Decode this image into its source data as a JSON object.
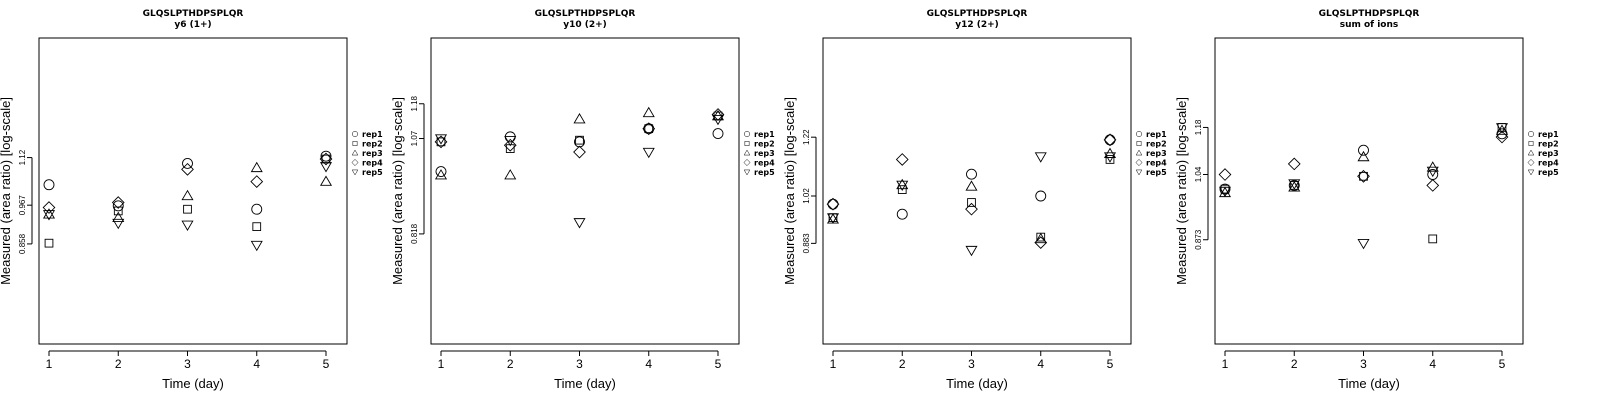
{
  "chart_data": [
    {
      "type": "scatter",
      "title": "GLQSLPTHDPSPLQR",
      "subtitle": "y6 (1+)",
      "xlabel": "Time (day)",
      "ylabel": "Measured (area ratio) [log-scale]",
      "x_ticks": [
        1,
        2,
        3,
        4,
        5
      ],
      "y_ticks": [
        0.858,
        0.967,
        1.12
      ],
      "log_y": true,
      "ylim": [
        0.63,
        1.62
      ],
      "legend_position": "right",
      "series": [
        {
          "name": "rep1",
          "marker": "circle",
          "x": [
            1,
            2,
            3,
            4,
            5
          ],
          "y": [
            1.03,
            0.965,
            1.1,
            0.955,
            1.125
          ]
        },
        {
          "name": "rep2",
          "marker": "square",
          "x": [
            1,
            2,
            3,
            4,
            5
          ],
          "y": [
            0.86,
            0.95,
            0.955,
            0.905,
            1.115
          ]
        },
        {
          "name": "rep3",
          "marker": "triangle-up",
          "x": [
            1,
            2,
            3,
            4,
            5
          ],
          "y": [
            0.94,
            0.93,
            0.995,
            1.085,
            1.04
          ]
        },
        {
          "name": "rep4",
          "marker": "diamond",
          "x": [
            1,
            2,
            3,
            4,
            5
          ],
          "y": [
            0.96,
            0.975,
            1.08,
            1.04,
            1.115
          ]
        },
        {
          "name": "rep5",
          "marker": "triangle-down",
          "x": [
            1,
            2,
            3,
            4,
            5
          ],
          "y": [
            0.94,
            0.915,
            0.91,
            0.855,
            1.09
          ]
        }
      ]
    },
    {
      "type": "scatter",
      "title": "GLQSLPTHDPSPLQR",
      "subtitle": "y10 (2+)",
      "xlabel": "Time (day)",
      "ylabel": "Measured (area ratio) [log-scale]",
      "x_ticks": [
        1,
        2,
        3,
        4,
        5
      ],
      "y_ticks": [
        0.818,
        1.07,
        1.18
      ],
      "log_y": true,
      "ylim": [
        0.6,
        1.42
      ],
      "legend_position": "right",
      "series": [
        {
          "name": "rep1",
          "marker": "circle",
          "x": [
            1,
            2,
            3,
            4,
            5
          ],
          "y": [
            0.975,
            1.075,
            1.06,
            1.1,
            1.085
          ]
        },
        {
          "name": "rep2",
          "marker": "square",
          "x": [
            1,
            2,
            3,
            4,
            5
          ],
          "y": [
            1.06,
            1.04,
            1.065,
            1.1,
            1.14
          ]
        },
        {
          "name": "rep3",
          "marker": "triangle-up",
          "x": [
            1,
            2,
            3,
            4,
            5
          ],
          "y": [
            0.965,
            0.965,
            1.13,
            1.15,
            1.14
          ]
        },
        {
          "name": "rep4",
          "marker": "diamond",
          "x": [
            1,
            2,
            3,
            4,
            5
          ],
          "y": [
            1.06,
            1.05,
            1.03,
            1.1,
            1.145
          ]
        },
        {
          "name": "rep5",
          "marker": "triangle-down",
          "x": [
            1,
            2,
            3,
            4,
            5
          ],
          "y": [
            1.07,
            1.065,
            0.845,
            1.03,
            1.13
          ]
        }
      ]
    },
    {
      "type": "scatter",
      "title": "GLQSLPTHDPSPLQR",
      "subtitle": "y12 (2+)",
      "xlabel": "Time (day)",
      "ylabel": "Measured (area ratio) [log-scale]",
      "x_ticks": [
        1,
        2,
        3,
        4,
        5
      ],
      "y_ticks": [
        0.883,
        1.02,
        1.22
      ],
      "log_y": true,
      "ylim": [
        0.65,
        1.65
      ],
      "legend_position": "right",
      "series": [
        {
          "name": "rep1",
          "marker": "circle",
          "x": [
            1,
            2,
            3,
            4,
            5
          ],
          "y": [
            0.995,
            0.965,
            1.09,
            1.02,
            1.21
          ]
        },
        {
          "name": "rep2",
          "marker": "square",
          "x": [
            1,
            2,
            3,
            4,
            5
          ],
          "y": [
            0.955,
            1.04,
            1.0,
            0.9,
            1.14
          ]
        },
        {
          "name": "rep3",
          "marker": "triangle-up",
          "x": [
            1,
            2,
            3,
            4,
            5
          ],
          "y": [
            0.95,
            1.055,
            1.05,
            0.895,
            1.16
          ]
        },
        {
          "name": "rep4",
          "marker": "diamond",
          "x": [
            1,
            2,
            3,
            4,
            5
          ],
          "y": [
            0.995,
            1.14,
            0.98,
            0.885,
            1.21
          ]
        },
        {
          "name": "rep5",
          "marker": "triangle-down",
          "x": [
            1,
            2,
            3,
            4,
            5
          ],
          "y": [
            0.955,
            1.055,
            0.865,
            1.15,
            1.15
          ]
        }
      ]
    },
    {
      "type": "scatter",
      "title": "GLQSLPTHDPSPLQR",
      "subtitle": "sum of ions",
      "xlabel": "Time (day)",
      "ylabel": "Measured (area ratio) [log-scale]",
      "x_ticks": [
        1,
        2,
        3,
        4,
        5
      ],
      "y_ticks": [
        0.873,
        1.04,
        1.18
      ],
      "log_y": true,
      "ylim": [
        0.66,
        1.5
      ],
      "legend_position": "right",
      "series": [
        {
          "name": "rep1",
          "marker": "circle",
          "x": [
            1,
            2,
            3,
            4,
            5
          ],
          "y": [
            1.0,
            1.01,
            1.11,
            1.04,
            1.16
          ]
        },
        {
          "name": "rep2",
          "marker": "square",
          "x": [
            1,
            2,
            3,
            4,
            5
          ],
          "y": [
            1.0,
            1.01,
            1.035,
            0.875,
            1.18
          ]
        },
        {
          "name": "rep3",
          "marker": "triangle-up",
          "x": [
            1,
            2,
            3,
            4,
            5
          ],
          "y": [
            0.99,
            1.005,
            1.09,
            1.06,
            1.17
          ]
        },
        {
          "name": "rep4",
          "marker": "diamond",
          "x": [
            1,
            2,
            3,
            4,
            5
          ],
          "y": [
            1.04,
            1.07,
            1.035,
            1.01,
            1.15
          ]
        },
        {
          "name": "rep5",
          "marker": "triangle-down",
          "x": [
            1,
            2,
            3,
            4,
            5
          ],
          "y": [
            0.995,
            1.015,
            0.865,
            1.05,
            1.18
          ]
        }
      ]
    }
  ]
}
